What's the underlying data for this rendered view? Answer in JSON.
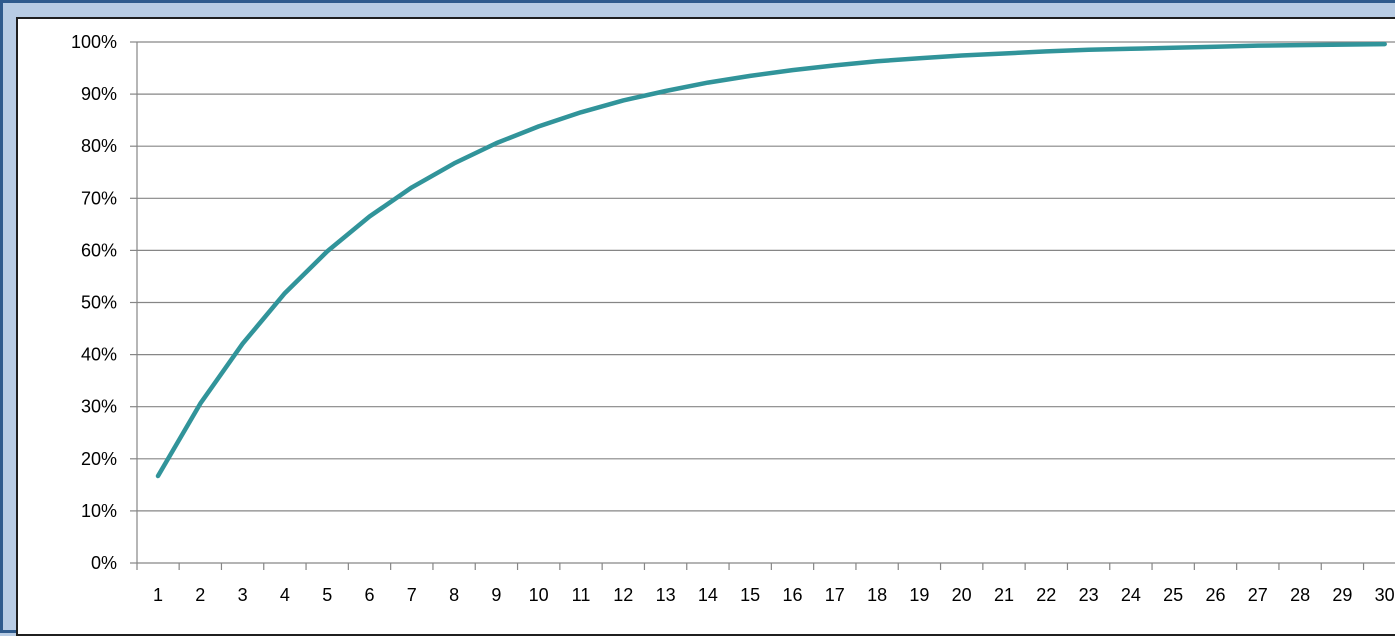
{
  "chart_data": {
    "type": "line",
    "title": "",
    "xlabel": "",
    "ylabel": "",
    "x": [
      1,
      2,
      3,
      4,
      5,
      6,
      7,
      8,
      9,
      10,
      11,
      12,
      13,
      14,
      15,
      16,
      17,
      18,
      19,
      20,
      21,
      22,
      23,
      24,
      25,
      26,
      27,
      28,
      29,
      30
    ],
    "x_tick_labels": [
      "1",
      "2",
      "3",
      "4",
      "5",
      "6",
      "7",
      "8",
      "9",
      "10",
      "11",
      "12",
      "13",
      "14",
      "15",
      "16",
      "17",
      "18",
      "19",
      "20",
      "21",
      "22",
      "23",
      "24",
      "25",
      "26",
      "27",
      "28",
      "29",
      "30"
    ],
    "y_tick_labels": [
      "0%",
      "10%",
      "20%",
      "30%",
      "40%",
      "50%",
      "60%",
      "70%",
      "80%",
      "90%",
      "100%"
    ],
    "ylim": [
      0,
      100
    ],
    "y_unit": "percent",
    "grid": "horizontal major",
    "legend": "none",
    "series": [
      {
        "values": [
          16.7,
          30.6,
          42.1,
          51.8,
          59.8,
          66.5,
          72.1,
          76.7,
          80.6,
          83.8,
          86.5,
          88.8,
          90.6,
          92.2,
          93.5,
          94.6,
          95.5,
          96.3,
          96.9,
          97.4,
          97.8,
          98.2,
          98.5,
          98.7,
          98.9,
          99.1,
          99.3,
          99.4,
          99.5,
          99.6
        ],
        "color": "#31949a"
      }
    ],
    "colors": {
      "line": "#31949a",
      "gridline": "#868686",
      "axis": "#868686",
      "frame_border": "#2f5b8d",
      "background": "#b8cce4",
      "plot_background": "#ffffff"
    }
  }
}
